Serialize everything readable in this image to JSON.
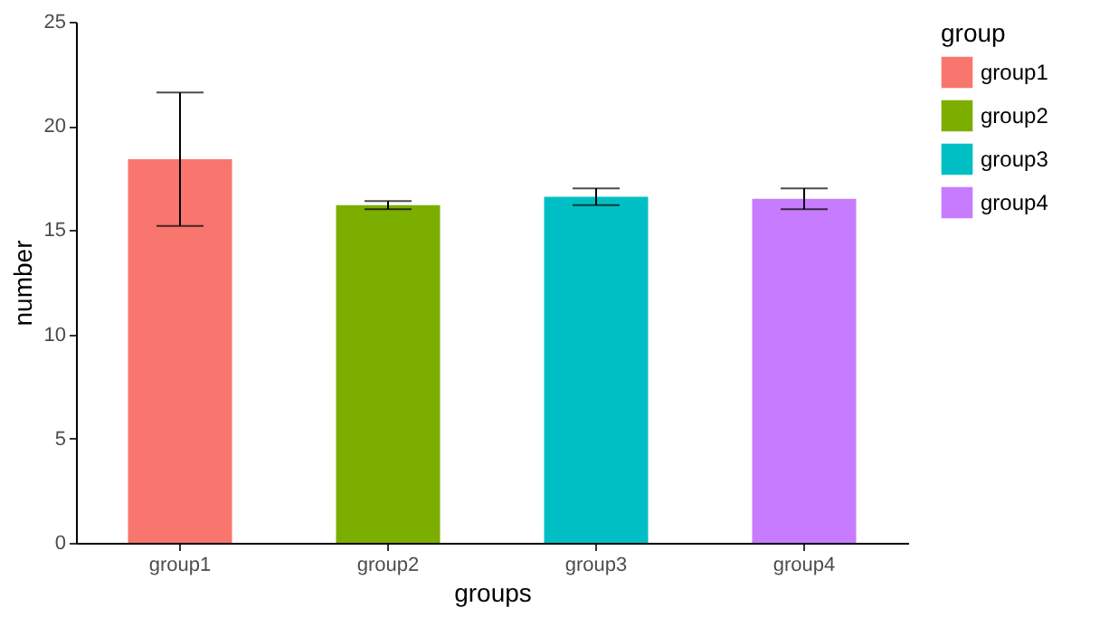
{
  "chart_data": {
    "type": "bar",
    "xlabel": "groups",
    "ylabel": "number",
    "legend_title": "group",
    "categories": [
      "group1",
      "group2",
      "group3",
      "group4"
    ],
    "series": [
      {
        "name": "group1",
        "color": "#f8766d",
        "values": [
          18.4,
          null,
          null,
          null
        ],
        "errors": [
          3.2,
          null,
          null,
          null
        ]
      },
      {
        "name": "group2",
        "color": "#7cae00",
        "values": [
          null,
          16.2,
          null,
          null
        ],
        "errors": [
          null,
          0.2,
          null,
          null
        ]
      },
      {
        "name": "group3",
        "color": "#00bfc4",
        "values": [
          null,
          null,
          16.6,
          null
        ],
        "errors": [
          null,
          null,
          0.4,
          null
        ]
      },
      {
        "name": "group4",
        "color": "#c77cff",
        "values": [
          null,
          null,
          null,
          16.5
        ],
        "errors": [
          null,
          null,
          null,
          0.5
        ]
      }
    ],
    "ylim": [
      0,
      25
    ],
    "yticks": [
      0,
      5,
      10,
      15,
      20,
      25
    ],
    "grid": false,
    "legend": "right"
  }
}
